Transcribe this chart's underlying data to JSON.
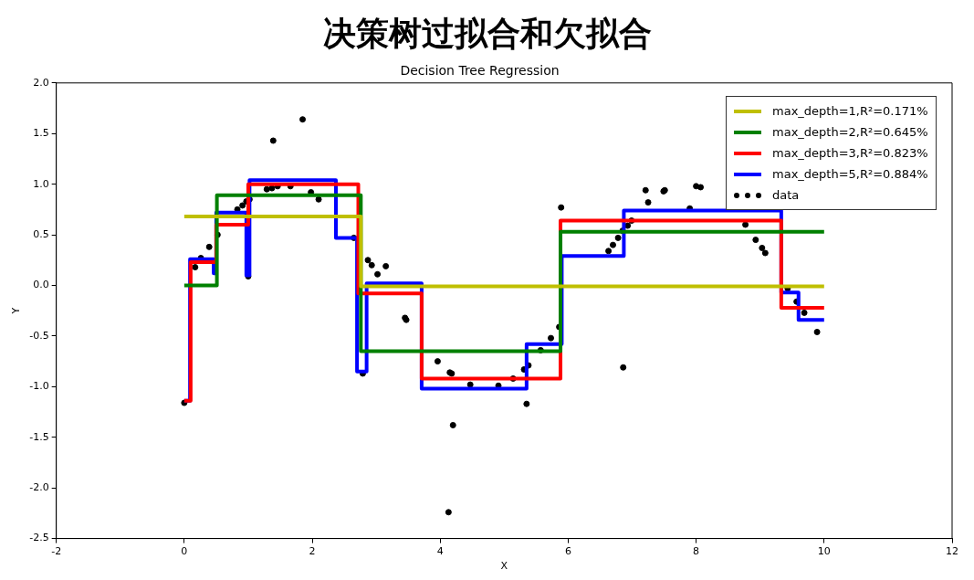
{
  "chart_data": {
    "type": "step",
    "title": "决策树过拟合和欠拟合",
    "subtitle": "Decision Tree Regression",
    "xlabel": "X",
    "ylabel": "Y",
    "xlim": [
      -2,
      12
    ],
    "xticks": [
      -2,
      0,
      2,
      4,
      6,
      8,
      10,
      12
    ],
    "ylim": [
      -2.5,
      2
    ],
    "yticks": [
      {
        "value": -2.5,
        "label": "-2.5"
      },
      {
        "value": -2,
        "label": "-2.0"
      },
      {
        "value": -1.5,
        "label": "-1.5"
      },
      {
        "value": -1,
        "label": "-1.0"
      },
      {
        "value": -0.5,
        "label": "-0.5"
      },
      {
        "value": 0,
        "label": "0.0"
      },
      {
        "value": 0.5,
        "label": "0.5"
      },
      {
        "value": 1,
        "label": "1.0"
      },
      {
        "value": 1.5,
        "label": "1.5"
      },
      {
        "value": 2,
        "label": "2.0"
      }
    ],
    "grid": false,
    "legend": "top right",
    "marker": "none",
    "line_style": "solid",
    "series": [
      {
        "name": "max_depth=1,R²=0.171%",
        "color": "#bfbf00",
        "x": [
          0,
          2.76,
          10
        ],
        "values": [
          0.68,
          -0.01,
          -0.01
        ]
      },
      {
        "name": "max_depth=2,R²=0.645%",
        "color": "#008000",
        "x": [
          0,
          0.51,
          2.76,
          5.88,
          10
        ],
        "values": [
          0,
          0.89,
          -0.65,
          0.53,
          0.53
        ]
      },
      {
        "name": "max_depth=3,R²=0.823%",
        "color": "#ff0000",
        "x": [
          0,
          0.1,
          0.5,
          1.0,
          2.72,
          3.71,
          5.88,
          9.33,
          10
        ],
        "values": [
          -1.14,
          0.23,
          0.6,
          1.0,
          -0.08,
          -0.92,
          0.64,
          -0.22,
          -0.22
        ]
      },
      {
        "name": "max_depth=5,R²=0.884%",
        "color": "#0000ff",
        "x": [
          0,
          0.09,
          0.46,
          0.5,
          0.97,
          1.02,
          2.37,
          2.7,
          2.85,
          3.71,
          5.35,
          5.9,
          6.87,
          9.33,
          9.6,
          10
        ],
        "values": [
          -1.14,
          0.26,
          0.12,
          0.72,
          0.1,
          1.04,
          0.47,
          -0.85,
          0.02,
          -1.02,
          -0.58,
          0.29,
          0.74,
          -0.07,
          -0.34,
          -0.34
        ]
      },
      {
        "name": "data",
        "type": "scatter",
        "marker": "circle",
        "color": "#000000",
        "x": [
          0,
          0.17,
          0.26,
          0.39,
          0.52,
          0.83,
          0.91,
          0.97,
          1.0,
          1.02,
          1.29,
          1.37,
          1.39,
          1.46,
          1.66,
          1.85,
          1.98,
          2.1,
          2.65,
          2.79,
          2.87,
          2.93,
          3.02,
          3.15,
          3.45,
          3.47,
          3.96,
          4.13,
          4.15,
          4.18,
          4.2,
          4.47,
          4.91,
          5.14,
          5.31,
          5.35,
          5.38,
          5.57,
          5.73,
          5.86,
          5.89,
          6.63,
          6.7,
          6.78,
          6.85,
          6.86,
          6.93,
          6.99,
          7.21,
          7.25,
          7.49,
          7.51,
          7.9,
          8.0,
          8.07,
          8.77,
          8.93,
          9.03,
          9.08,
          9.43,
          9.57,
          9.69,
          9.89
        ],
        "values": [
          -1.16,
          0.18,
          0.27,
          0.38,
          0.5,
          0.75,
          0.79,
          0.83,
          0.09,
          0.85,
          0.95,
          0.96,
          1.43,
          0.98,
          0.98,
          1.64,
          0.92,
          0.85,
          0.47,
          -0.87,
          0.25,
          0.2,
          0.11,
          0.19,
          -0.32,
          -0.34,
          -0.75,
          -2.24,
          -0.86,
          -0.87,
          -1.38,
          -0.98,
          -0.99,
          -0.92,
          -0.83,
          -1.17,
          -0.79,
          -0.64,
          -0.52,
          -0.41,
          0.77,
          0.34,
          0.4,
          0.47,
          0.54,
          -0.81,
          0.59,
          0.64,
          0.94,
          0.82,
          0.93,
          0.94,
          0.76,
          0.98,
          0.97,
          0.6,
          0.45,
          0.37,
          0.32,
          -0.03,
          -0.16,
          -0.27,
          -0.46
        ]
      }
    ]
  }
}
